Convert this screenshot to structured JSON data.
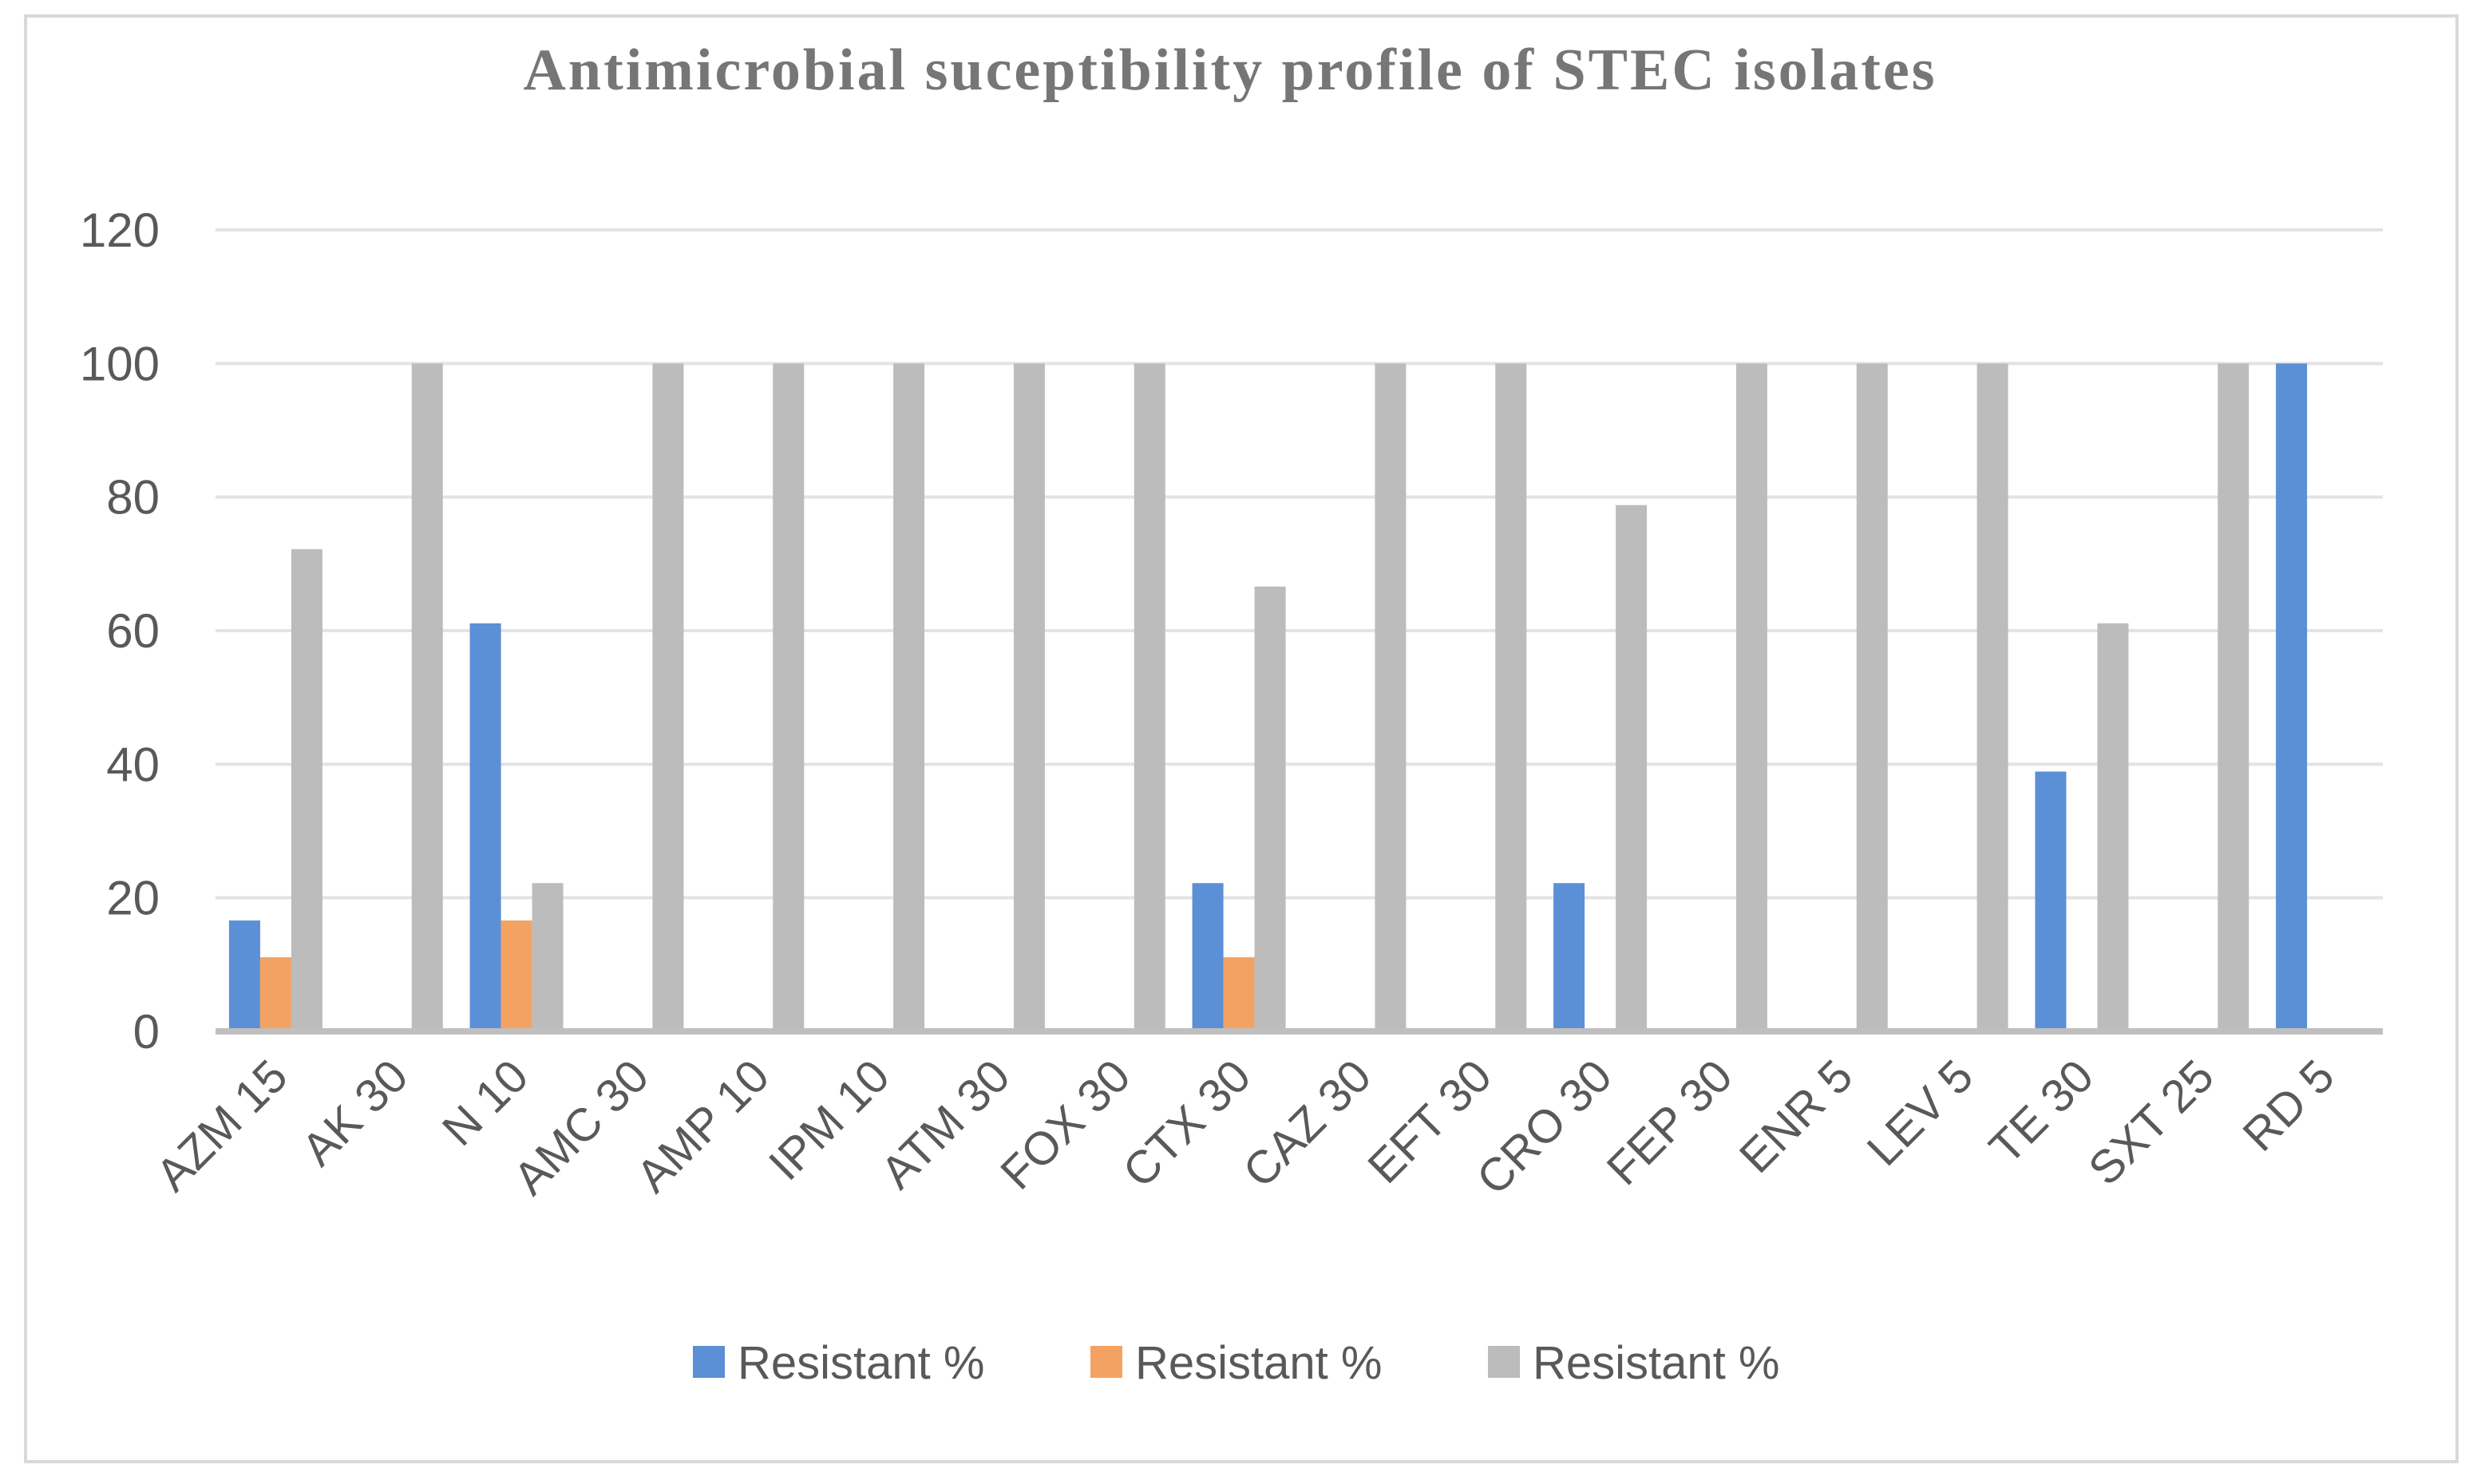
{
  "chart_data": {
    "type": "bar",
    "title": "Antimicrobial suceptibility profile of STEC isolates",
    "xlabel": "",
    "ylabel": "",
    "ylim": [
      0,
      120
    ],
    "yticks": [
      0,
      20,
      40,
      60,
      80,
      100,
      120
    ],
    "grid": true,
    "legend_position": "bottom",
    "categories": [
      "AZM 15",
      "AK 30",
      "N 10",
      "AMC 30",
      "AMP 10",
      "IPM 10",
      "ATM 30",
      "FOX 30",
      "CTX 30",
      "CAZ 30",
      "EFT 30",
      "CRO 30",
      "FEP 30",
      "ENR 5",
      "LEV 5",
      "TE 30",
      "SXT 25",
      "RD 5"
    ],
    "series": [
      {
        "name": "Resistant %",
        "color": "#5b8fd6",
        "values": [
          16.6,
          0,
          61.1,
          0,
          0,
          0,
          0,
          0,
          22.2,
          0,
          0,
          22.2,
          0,
          0,
          0,
          38.9,
          0,
          100
        ]
      },
      {
        "name": "Resistant %",
        "color": "#f4a261",
        "values": [
          11.1,
          0,
          16.6,
          0,
          0,
          0,
          0,
          0,
          11.1,
          0,
          0,
          0,
          0,
          0,
          0,
          0,
          0,
          0
        ]
      },
      {
        "name": "Resistant %",
        "color": "#bcbcbc",
        "values": [
          72.2,
          100,
          22.2,
          100,
          100,
          100,
          100,
          100,
          66.6,
          100,
          100,
          78.8,
          100,
          100,
          100,
          61.1,
          100,
          0
        ]
      }
    ]
  },
  "colors": {
    "grid": "#e3e3e3",
    "axis": "#bfbfbf",
    "text": "#595959",
    "title": "#767676",
    "border": "#d9d9d9"
  }
}
